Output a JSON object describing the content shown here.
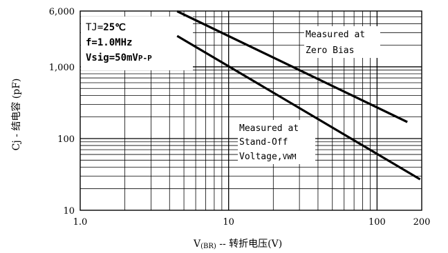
{
  "chart_data": {
    "type": "line",
    "x_scale": "log",
    "y_scale": "log",
    "xlim": [
      1,
      200
    ],
    "ylim": [
      10,
      6000
    ],
    "xticks": [
      {
        "value": 1,
        "label": "1.0"
      },
      {
        "value": 10,
        "label": "10"
      },
      {
        "value": 100,
        "label": "100"
      },
      {
        "value": 200,
        "label": "200"
      }
    ],
    "yticks": [
      {
        "value": 10,
        "label": "10"
      },
      {
        "value": 100,
        "label": "100"
      },
      {
        "value": 1000,
        "label": "1,000"
      },
      {
        "value": 6000,
        "label": "6,000"
      }
    ],
    "xlabel": {
      "main": "V",
      "sub": "(BR)",
      "rest": " -- 转折电压(V)"
    },
    "ylabel": "Cj - 结电容 (pF)",
    "grid": true,
    "conditions": {
      "tj_label": "TJ=",
      "tj_value": "25℃",
      "freq": "f=1.0MHz",
      "vsig_main": "Vsig=50mV",
      "vsig_sub": "P-P"
    },
    "series": [
      {
        "name": "Measured at Zero Bias",
        "annotation": [
          "Measured at",
          "Zero Bias"
        ],
        "x": [
          4.5,
          160
        ],
        "y": [
          5950,
          170
        ]
      },
      {
        "name": "Measured at Stand-Off Voltage, VWM",
        "annotation": [
          "Measured at",
          "Stand-Off",
          "Voltage,",
          "VWM"
        ],
        "x": [
          4.5,
          195
        ],
        "y": [
          2700,
          27
        ]
      }
    ]
  }
}
